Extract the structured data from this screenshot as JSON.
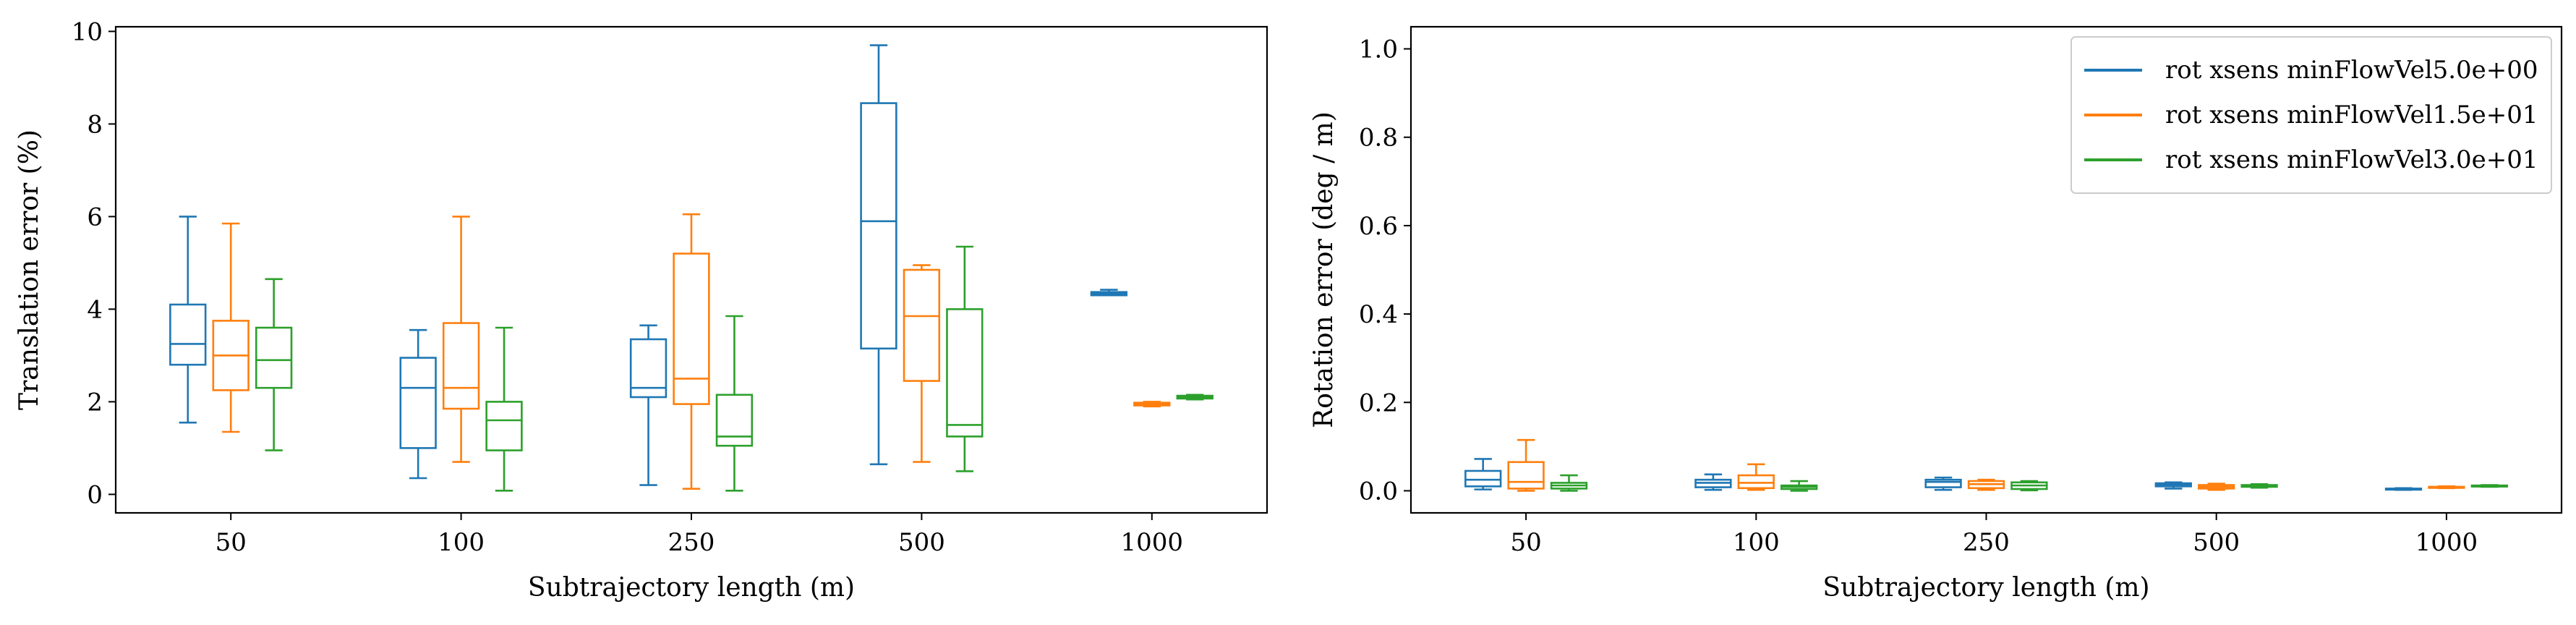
{
  "chart_data": [
    {
      "type": "box",
      "categories": [
        "50",
        "100",
        "250",
        "500",
        "1000"
      ],
      "xlabel": "Subtrajectory length (m)",
      "ylabel": "Translation error (%)",
      "ylim": [
        -0.4,
        10.1
      ],
      "yticks": [
        0,
        2,
        4,
        6,
        8,
        10
      ],
      "yticklabels": [
        "0",
        "2",
        "4",
        "6",
        "8",
        "10"
      ],
      "grid": false,
      "series": [
        {
          "color": "#1f77b4",
          "boxes": [
            {
              "whislo": 1.55,
              "q1": 2.8,
              "med": 3.25,
              "q3": 4.1,
              "whishi": 6.0
            },
            {
              "whislo": 0.35,
              "q1": 1.0,
              "med": 2.3,
              "q3": 2.95,
              "whishi": 3.55
            },
            {
              "whislo": 0.2,
              "q1": 2.1,
              "med": 2.3,
              "q3": 3.35,
              "whishi": 3.65
            },
            {
              "whislo": 0.65,
              "q1": 3.15,
              "med": 5.9,
              "q3": 8.45,
              "whishi": 9.7
            },
            {
              "whislo": 4.3,
              "q1": 4.3,
              "med": 4.33,
              "q3": 4.37,
              "whishi": 4.42
            }
          ]
        },
        {
          "color": "#ff7f0e",
          "boxes": [
            {
              "whislo": 1.35,
              "q1": 2.25,
              "med": 3.0,
              "q3": 3.75,
              "whishi": 5.85
            },
            {
              "whislo": 0.7,
              "q1": 1.85,
              "med": 2.3,
              "q3": 3.7,
              "whishi": 6.0
            },
            {
              "whislo": 0.12,
              "q1": 1.95,
              "med": 2.5,
              "q3": 5.2,
              "whishi": 6.05
            },
            {
              "whislo": 0.7,
              "q1": 2.45,
              "med": 3.85,
              "q3": 4.85,
              "whishi": 4.95
            },
            {
              "whislo": 1.9,
              "q1": 1.92,
              "med": 1.95,
              "q3": 1.98,
              "whishi": 2.0
            }
          ]
        },
        {
          "color": "#2ca02c",
          "boxes": [
            {
              "whislo": 0.95,
              "q1": 2.3,
              "med": 2.9,
              "q3": 3.6,
              "whishi": 4.65
            },
            {
              "whislo": 0.08,
              "q1": 0.95,
              "med": 1.6,
              "q3": 2.0,
              "whishi": 3.6
            },
            {
              "whislo": 0.08,
              "q1": 1.05,
              "med": 1.25,
              "q3": 2.15,
              "whishi": 3.85
            },
            {
              "whislo": 0.5,
              "q1": 1.25,
              "med": 1.5,
              "q3": 4.0,
              "whishi": 5.35
            },
            {
              "whislo": 2.05,
              "q1": 2.07,
              "med": 2.1,
              "q3": 2.13,
              "whishi": 2.15
            }
          ]
        }
      ]
    },
    {
      "type": "box",
      "categories": [
        "50",
        "100",
        "250",
        "500",
        "1000"
      ],
      "xlabel": "Subtrajectory length (m)",
      "ylabel": "Rotation error (deg / m)",
      "ylim": [
        -0.05,
        1.05
      ],
      "yticks": [
        0.0,
        0.2,
        0.4,
        0.6,
        0.8,
        1.0
      ],
      "yticklabels": [
        "0.0",
        "0.2",
        "0.4",
        "0.6",
        "0.8",
        "1.0"
      ],
      "grid": false,
      "legend_position": "upper right",
      "series": [
        {
          "name": "rot xsens minFlowVel5.0e+00",
          "color": "#1f77b4",
          "boxes": [
            {
              "whislo": 0.003,
              "q1": 0.01,
              "med": 0.025,
              "q3": 0.045,
              "whishi": 0.072
            },
            {
              "whislo": 0.002,
              "q1": 0.008,
              "med": 0.018,
              "q3": 0.025,
              "whishi": 0.037
            },
            {
              "whislo": 0.002,
              "q1": 0.008,
              "med": 0.02,
              "q3": 0.025,
              "whishi": 0.03
            },
            {
              "whislo": 0.005,
              "q1": 0.01,
              "med": 0.014,
              "q3": 0.017,
              "whishi": 0.019
            },
            {
              "whislo": 0.002,
              "q1": 0.003,
              "med": 0.004,
              "q3": 0.005,
              "whishi": 0.006
            }
          ]
        },
        {
          "name": "rot xsens minFlowVel1.5e+01",
          "color": "#ff7f0e",
          "boxes": [
            {
              "whislo": 0.0,
              "q1": 0.005,
              "med": 0.02,
              "q3": 0.065,
              "whishi": 0.115
            },
            {
              "whislo": 0.002,
              "q1": 0.006,
              "med": 0.018,
              "q3": 0.035,
              "whishi": 0.06
            },
            {
              "whislo": 0.002,
              "q1": 0.006,
              "med": 0.015,
              "q3": 0.022,
              "whishi": 0.025
            },
            {
              "whislo": 0.002,
              "q1": 0.005,
              "med": 0.009,
              "q3": 0.013,
              "whishi": 0.016
            },
            {
              "whislo": 0.006,
              "q1": 0.007,
              "med": 0.008,
              "q3": 0.009,
              "whishi": 0.01
            }
          ]
        },
        {
          "name": "rot xsens minFlowVel3.0e+01",
          "color": "#2ca02c",
          "boxes": [
            {
              "whislo": 0.0,
              "q1": 0.005,
              "med": 0.012,
              "q3": 0.018,
              "whishi": 0.035
            },
            {
              "whislo": 0.0,
              "q1": 0.004,
              "med": 0.009,
              "q3": 0.012,
              "whishi": 0.022
            },
            {
              "whislo": 0.001,
              "q1": 0.004,
              "med": 0.012,
              "q3": 0.019,
              "whishi": 0.022
            },
            {
              "whislo": 0.007,
              "q1": 0.009,
              "med": 0.011,
              "q3": 0.013,
              "whishi": 0.015
            },
            {
              "whislo": 0.009,
              "q1": 0.01,
              "med": 0.011,
              "q3": 0.012,
              "whishi": 0.013
            }
          ]
        }
      ]
    }
  ]
}
